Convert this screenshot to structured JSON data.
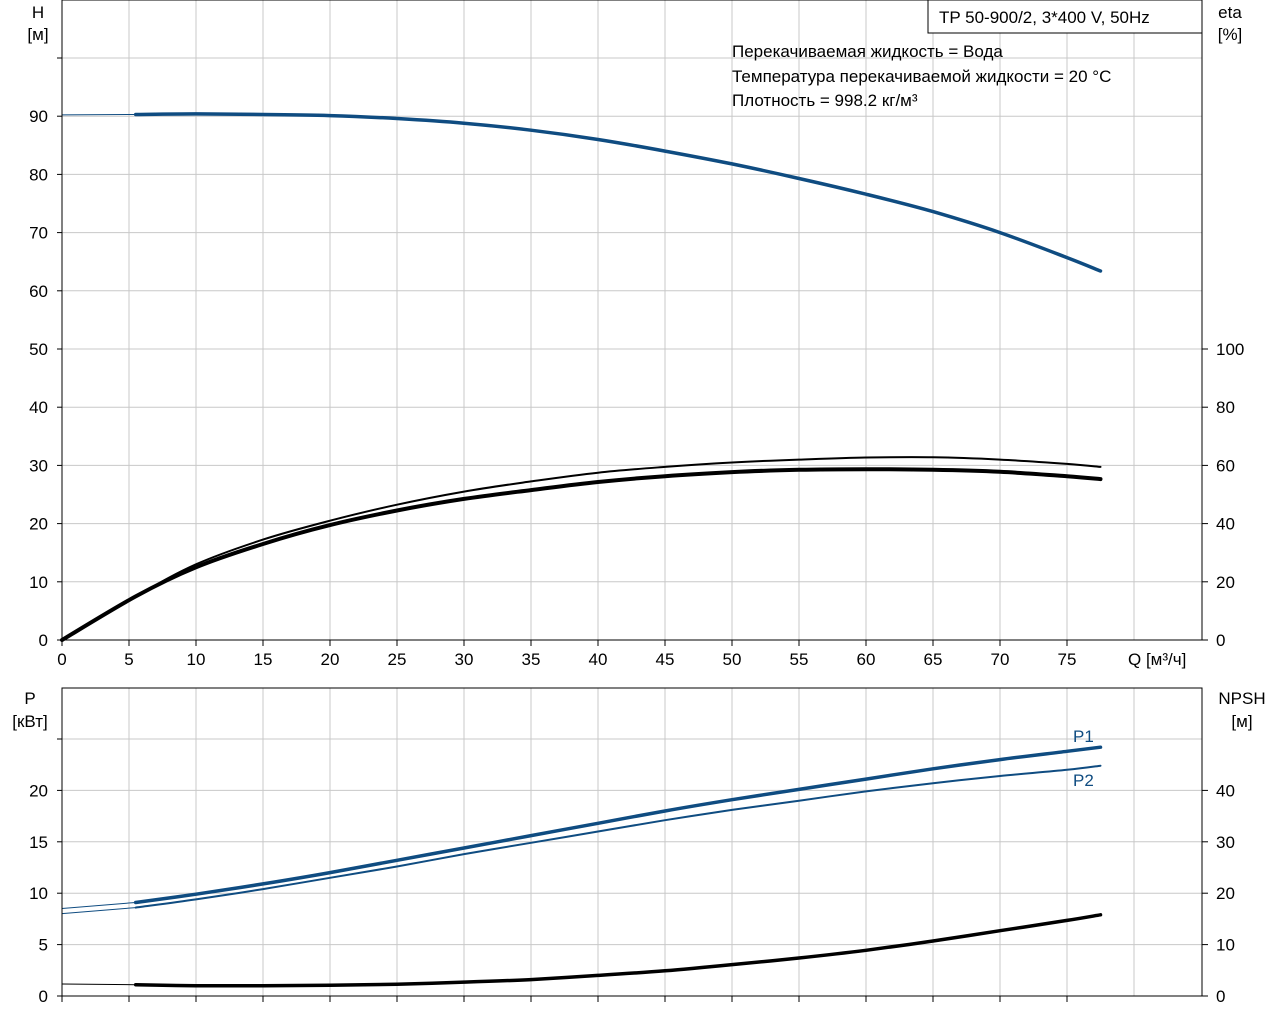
{
  "title_box": "TP 50-900/2, 3*400 V, 50Hz",
  "info_lines": [
    "Перекачиваемая жидкость = Вода",
    "Температура перекачиваемой жидкости = 20 °C",
    "Плотность = 998.2 кг/м³"
  ],
  "colors": {
    "blue": "#0f4c81",
    "black": "#000000",
    "grid": "#c8c8c8"
  },
  "chart_data": [
    {
      "type": "line",
      "axes": {
        "x": {
          "label": "Q [м³/ч]",
          "range": [
            0,
            85
          ],
          "ticks": [
            0,
            5,
            10,
            15,
            20,
            25,
            30,
            35,
            40,
            45,
            50,
            55,
            60,
            65,
            70,
            75
          ]
        },
        "y_left": {
          "label_lines": [
            "H",
            "[м]"
          ],
          "range": [
            0,
            110
          ],
          "ticks": [
            0,
            10,
            20,
            30,
            40,
            50,
            60,
            70,
            80,
            90
          ]
        },
        "y_right": {
          "label_lines": [
            "eta",
            "[%]"
          ],
          "range": [
            0,
            220
          ],
          "ticks": [
            0,
            20,
            40,
            60,
            80,
            100
          ]
        }
      },
      "grid": true,
      "series": [
        {
          "axis": "left",
          "color": "#0f4c81",
          "width": 3.5,
          "lead_from": 0,
          "points": [
            [
              5.5,
              90.3
            ],
            [
              10,
              90.4
            ],
            [
              15,
              90.3
            ],
            [
              20,
              90.1
            ],
            [
              25,
              89.6
            ],
            [
              30,
              88.8
            ],
            [
              35,
              87.6
            ],
            [
              40,
              86.0
            ],
            [
              45,
              84.0
            ],
            [
              50,
              81.8
            ],
            [
              55,
              79.3
            ],
            [
              60,
              76.6
            ],
            [
              65,
              73.6
            ],
            [
              70,
              70.0
            ],
            [
              75,
              65.7
            ],
            [
              77.5,
              63.4
            ]
          ]
        },
        {
          "axis": "right",
          "color": "#000000",
          "width": 2,
          "points": [
            [
              0,
              0
            ],
            [
              5.5,
              15
            ],
            [
              10,
              26
            ],
            [
              15,
              34.5
            ],
            [
              20,
              41
            ],
            [
              25,
              46.5
            ],
            [
              30,
              51
            ],
            [
              35,
              54.5
            ],
            [
              40,
              57.5
            ],
            [
              45,
              59.5
            ],
            [
              50,
              61
            ],
            [
              55,
              62
            ],
            [
              60,
              62.7
            ],
            [
              65,
              62.8
            ],
            [
              70,
              62
            ],
            [
              75,
              60.5
            ],
            [
              77.5,
              59.5
            ]
          ]
        },
        {
          "axis": "right",
          "color": "#000000",
          "width": 4,
          "points": [
            [
              0,
              0
            ],
            [
              5.5,
              15
            ],
            [
              10,
              25
            ],
            [
              15,
              33
            ],
            [
              20,
              39.5
            ],
            [
              25,
              44.5
            ],
            [
              30,
              48.5
            ],
            [
              35,
              51.5
            ],
            [
              40,
              54.3
            ],
            [
              45,
              56.3
            ],
            [
              50,
              57.7
            ],
            [
              55,
              58.5
            ],
            [
              60,
              58.7
            ],
            [
              65,
              58.5
            ],
            [
              70,
              57.8
            ],
            [
              75,
              56.3
            ],
            [
              77.5,
              55.3
            ]
          ]
        }
      ]
    },
    {
      "type": "line",
      "axes": {
        "x": {
          "range": [
            0,
            85
          ]
        },
        "y_left": {
          "label_lines": [
            "P",
            "[кВт]"
          ],
          "range": [
            0,
            29
          ],
          "ticks": [
            0,
            5,
            10,
            15,
            20
          ]
        },
        "y_right": {
          "label_lines": [
            "NPSH",
            "[м]"
          ],
          "range": [
            0,
            58
          ],
          "ticks": [
            0,
            10,
            20,
            30,
            40
          ]
        }
      },
      "grid": true,
      "series": [
        {
          "name": "P1",
          "axis": "left",
          "color": "#0f4c81",
          "width": 3.5,
          "lead_from": 0,
          "points": [
            [
              5.5,
              9.1
            ],
            [
              10,
              9.9
            ],
            [
              15,
              10.9
            ],
            [
              20,
              12.0
            ],
            [
              25,
              13.2
            ],
            [
              30,
              14.4
            ],
            [
              35,
              15.6
            ],
            [
              40,
              16.8
            ],
            [
              45,
              18.0
            ],
            [
              50,
              19.1
            ],
            [
              55,
              20.1
            ],
            [
              60,
              21.1
            ],
            [
              65,
              22.1
            ],
            [
              70,
              23.0
            ],
            [
              75,
              23.8
            ],
            [
              77.5,
              24.2
            ]
          ]
        },
        {
          "name": "P2",
          "axis": "left",
          "color": "#0f4c81",
          "width": 2,
          "lead_from": 0,
          "points": [
            [
              5.5,
              8.6
            ],
            [
              10,
              9.4
            ],
            [
              15,
              10.4
            ],
            [
              20,
              11.5
            ],
            [
              25,
              12.6
            ],
            [
              30,
              13.8
            ],
            [
              35,
              14.9
            ],
            [
              40,
              16.0
            ],
            [
              45,
              17.1
            ],
            [
              50,
              18.1
            ],
            [
              55,
              19.0
            ],
            [
              60,
              19.9
            ],
            [
              65,
              20.7
            ],
            [
              70,
              21.4
            ],
            [
              75,
              22.0
            ],
            [
              77.5,
              22.4
            ]
          ]
        },
        {
          "axis": "right",
          "color": "#000000",
          "width": 3.5,
          "lead_from": 0,
          "points": [
            [
              5.5,
              2.2
            ],
            [
              10,
              2.0
            ],
            [
              15,
              2.0
            ],
            [
              20,
              2.1
            ],
            [
              25,
              2.3
            ],
            [
              30,
              2.7
            ],
            [
              35,
              3.2
            ],
            [
              40,
              4.0
            ],
            [
              45,
              4.9
            ],
            [
              50,
              6.1
            ],
            [
              55,
              7.4
            ],
            [
              60,
              8.9
            ],
            [
              65,
              10.7
            ],
            [
              70,
              12.7
            ],
            [
              75,
              14.7
            ],
            [
              77.5,
              15.8
            ]
          ]
        }
      ]
    }
  ]
}
